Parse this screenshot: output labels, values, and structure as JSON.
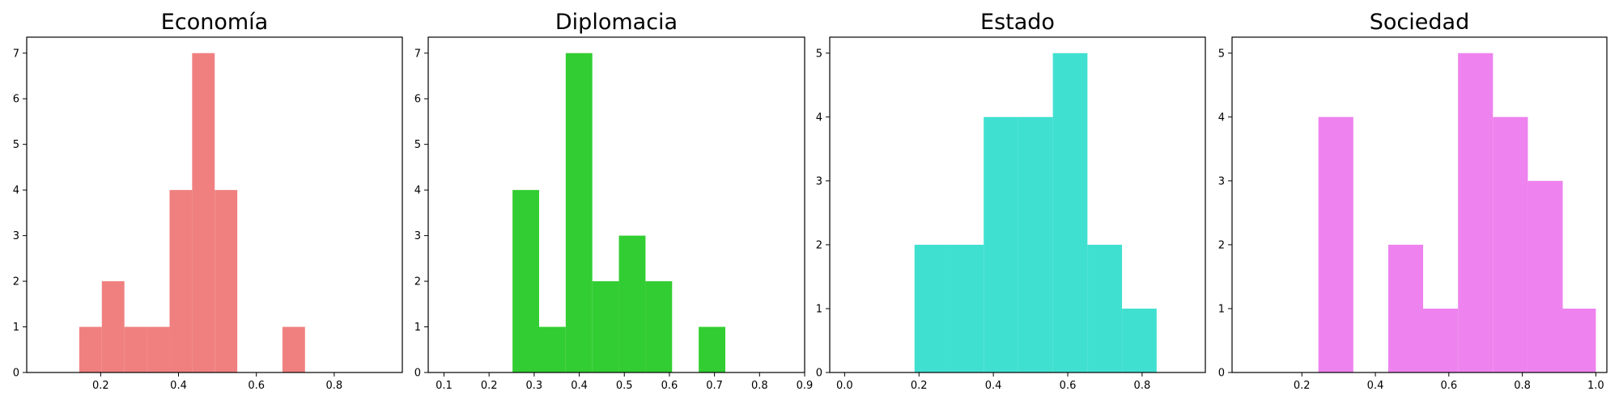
{
  "chart_data": [
    {
      "type": "histogram",
      "title": "Economía",
      "color": "#F08080",
      "xlim": [
        0.01,
        0.975
      ],
      "ylim": [
        0,
        7.35
      ],
      "xticks": [
        0.2,
        0.4,
        0.6,
        0.8
      ],
      "xtick_labels": [
        "0.2",
        "0.4",
        "0.6",
        "0.8"
      ],
      "yticks": [
        0,
        1,
        2,
        3,
        4,
        5,
        6,
        7
      ],
      "ytick_labels": [
        "0",
        "1",
        "2",
        "3",
        "4",
        "5",
        "6",
        "7"
      ],
      "bins": [
        {
          "x0": 0.145,
          "x1": 0.203,
          "count": 1
        },
        {
          "x0": 0.203,
          "x1": 0.261,
          "count": 2
        },
        {
          "x0": 0.261,
          "x1": 0.319,
          "count": 1
        },
        {
          "x0": 0.319,
          "x1": 0.377,
          "count": 1
        },
        {
          "x0": 0.377,
          "x1": 0.435,
          "count": 4
        },
        {
          "x0": 0.435,
          "x1": 0.493,
          "count": 7
        },
        {
          "x0": 0.493,
          "x1": 0.551,
          "count": 4
        },
        {
          "x0": 0.551,
          "x1": 0.609,
          "count": 0
        },
        {
          "x0": 0.609,
          "x1": 0.667,
          "count": 0
        },
        {
          "x0": 0.667,
          "x1": 0.725,
          "count": 1
        }
      ]
    },
    {
      "type": "histogram",
      "title": "Diplomacia",
      "color": "#32CD32",
      "xlim": [
        0.065,
        0.9
      ],
      "ylim": [
        0,
        7.35
      ],
      "xticks": [
        0.1,
        0.2,
        0.3,
        0.4,
        0.5,
        0.6,
        0.7,
        0.8,
        0.9
      ],
      "xtick_labels": [
        "0.1",
        "0.2",
        "0.3",
        "0.4",
        "0.5",
        "0.6",
        "0.7",
        "0.8",
        "0.9"
      ],
      "yticks": [
        0,
        1,
        2,
        3,
        4,
        5,
        6,
        7
      ],
      "ytick_labels": [
        "0",
        "1",
        "2",
        "3",
        "4",
        "5",
        "6",
        "7"
      ],
      "bins": [
        {
          "x0": 0.252,
          "x1": 0.311,
          "count": 4
        },
        {
          "x0": 0.311,
          "x1": 0.37,
          "count": 1
        },
        {
          "x0": 0.37,
          "x1": 0.429,
          "count": 7
        },
        {
          "x0": 0.429,
          "x1": 0.488,
          "count": 2
        },
        {
          "x0": 0.488,
          "x1": 0.547,
          "count": 3
        },
        {
          "x0": 0.547,
          "x1": 0.606,
          "count": 2
        },
        {
          "x0": 0.606,
          "x1": 0.665,
          "count": 0
        },
        {
          "x0": 0.665,
          "x1": 0.724,
          "count": 1
        }
      ]
    },
    {
      "type": "histogram",
      "title": "Estado",
      "color": "#40E0D0",
      "xlim": [
        -0.04,
        0.97
      ],
      "ylim": [
        0,
        5.25
      ],
      "xticks": [
        0.0,
        0.2,
        0.4,
        0.6,
        0.8
      ],
      "xtick_labels": [
        "0.0",
        "0.2",
        "0.4",
        "0.6",
        "0.8"
      ],
      "yticks": [
        0,
        1,
        2,
        3,
        4,
        5
      ],
      "ytick_labels": [
        "0",
        "1",
        "2",
        "3",
        "4",
        "5"
      ],
      "bins": [
        {
          "x0": 0.188,
          "x1": 0.281,
          "count": 2
        },
        {
          "x0": 0.281,
          "x1": 0.374,
          "count": 2
        },
        {
          "x0": 0.374,
          "x1": 0.467,
          "count": 4
        },
        {
          "x0": 0.467,
          "x1": 0.56,
          "count": 4
        },
        {
          "x0": 0.56,
          "x1": 0.653,
          "count": 5
        },
        {
          "x0": 0.653,
          "x1": 0.746,
          "count": 2
        },
        {
          "x0": 0.746,
          "x1": 0.839,
          "count": 1
        }
      ]
    },
    {
      "type": "histogram",
      "title": "Sociedad",
      "color": "#EE82EE",
      "xlim": [
        0.01,
        1.03
      ],
      "ylim": [
        0,
        5.25
      ],
      "xticks": [
        0.2,
        0.4,
        0.6,
        0.8,
        1.0
      ],
      "xtick_labels": [
        "0.2",
        "0.4",
        "0.6",
        "0.8",
        "1.0"
      ],
      "yticks": [
        0,
        1,
        2,
        3,
        4,
        5
      ],
      "ytick_labels": [
        "0",
        "1",
        "2",
        "3",
        "4",
        "5"
      ],
      "bins": [
        {
          "x0": 0.245,
          "x1": 0.34,
          "count": 4
        },
        {
          "x0": 0.34,
          "x1": 0.435,
          "count": 0
        },
        {
          "x0": 0.435,
          "x1": 0.53,
          "count": 2
        },
        {
          "x0": 0.53,
          "x1": 0.625,
          "count": 1
        },
        {
          "x0": 0.625,
          "x1": 0.72,
          "count": 5
        },
        {
          "x0": 0.72,
          "x1": 0.815,
          "count": 4
        },
        {
          "x0": 0.815,
          "x1": 0.91,
          "count": 3
        },
        {
          "x0": 0.91,
          "x1": 1.0,
          "count": 1
        }
      ]
    }
  ]
}
